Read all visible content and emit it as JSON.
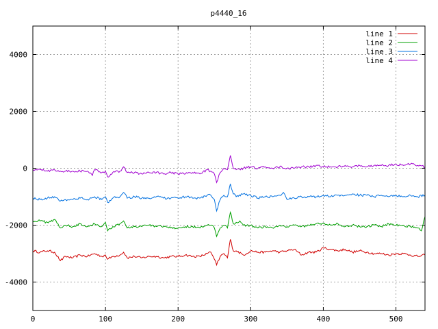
{
  "chart_data": {
    "type": "line",
    "title": "p4440_16",
    "xlabel": "",
    "ylabel": "",
    "xlim": [
      0,
      540
    ],
    "ylim": [
      -5000,
      5000
    ],
    "xticks": [
      0,
      100,
      200,
      300,
      400,
      500
    ],
    "yticks": [
      -4000,
      -2000,
      0,
      2000,
      4000
    ],
    "grid": true,
    "legend_position": "top-right",
    "series": [
      {
        "name": "line 1",
        "color": "#d00000",
        "x": [
          0,
          10,
          20,
          30,
          38,
          45,
          55,
          65,
          75,
          85,
          95,
          100,
          103,
          110,
          120,
          125,
          130,
          140,
          150,
          160,
          170,
          180,
          190,
          200,
          210,
          220,
          230,
          240,
          245,
          250,
          253,
          258,
          263,
          268,
          272,
          276,
          280,
          290,
          300,
          310,
          320,
          330,
          340,
          350,
          360,
          370,
          380,
          390,
          400,
          410,
          420,
          430,
          440,
          450,
          460,
          470,
          480,
          490,
          500,
          510,
          520,
          530,
          540
        ],
        "values": [
          -2900,
          -2950,
          -2900,
          -2950,
          -3250,
          -3100,
          -3150,
          -3050,
          -3100,
          -3000,
          -3100,
          -3050,
          -3200,
          -3100,
          -3050,
          -2950,
          -3150,
          -3100,
          -3150,
          -3100,
          -3100,
          -3150,
          -3100,
          -3100,
          -3050,
          -3100,
          -3100,
          -3000,
          -2950,
          -3200,
          -3400,
          -3100,
          -3000,
          -3150,
          -2500,
          -2900,
          -2900,
          -3050,
          -2900,
          -2950,
          -2950,
          -2900,
          -2950,
          -2900,
          -2850,
          -3050,
          -2950,
          -2950,
          -2800,
          -2850,
          -2900,
          -2850,
          -2950,
          -2900,
          -2950,
          -3000,
          -3000,
          -3050,
          -3000,
          -3000,
          -3050,
          -3100,
          -3050
        ]
      },
      {
        "name": "line 2",
        "color": "#00a000",
        "x": [
          0,
          10,
          20,
          30,
          38,
          45,
          55,
          65,
          75,
          85,
          95,
          100,
          103,
          110,
          120,
          125,
          130,
          140,
          150,
          160,
          170,
          180,
          190,
          200,
          210,
          220,
          230,
          240,
          245,
          250,
          253,
          258,
          263,
          268,
          272,
          276,
          280,
          285,
          290,
          300,
          310,
          320,
          330,
          340,
          350,
          360,
          370,
          380,
          390,
          400,
          410,
          420,
          430,
          440,
          450,
          460,
          470,
          480,
          490,
          500,
          510,
          520,
          530,
          535,
          540
        ],
        "values": [
          -1850,
          -1850,
          -1900,
          -1800,
          -2100,
          -2000,
          -2050,
          -1950,
          -2050,
          -1950,
          -2050,
          -1900,
          -2200,
          -2050,
          -1950,
          -1850,
          -2100,
          -2050,
          -2050,
          -2000,
          -2050,
          -2050,
          -2100,
          -2100,
          -2050,
          -2050,
          -2100,
          -2000,
          -2000,
          -2100,
          -2400,
          -2100,
          -2000,
          -2100,
          -1550,
          -1950,
          -1900,
          -1850,
          -2000,
          -2000,
          -2100,
          -2050,
          -2100,
          -2000,
          -2050,
          -2000,
          -2050,
          -2000,
          -1950,
          -1950,
          -2000,
          -1950,
          -2050,
          -2000,
          -2050,
          -2050,
          -2000,
          -2050,
          -1950,
          -2000,
          -2000,
          -2050,
          -2100,
          -2200,
          -1700
        ]
      },
      {
        "name": "line 3",
        "color": "#0070e0",
        "x": [
          0,
          10,
          20,
          30,
          38,
          45,
          55,
          65,
          75,
          85,
          95,
          100,
          103,
          110,
          120,
          125,
          130,
          140,
          150,
          160,
          170,
          180,
          190,
          200,
          210,
          220,
          230,
          240,
          245,
          250,
          253,
          258,
          263,
          268,
          272,
          276,
          280,
          290,
          300,
          310,
          320,
          330,
          340,
          345,
          350,
          360,
          370,
          380,
          390,
          400,
          410,
          420,
          430,
          440,
          450,
          460,
          470,
          480,
          490,
          500,
          510,
          520,
          530,
          540
        ],
        "values": [
          -1050,
          -1100,
          -1050,
          -1000,
          -1150,
          -1100,
          -1100,
          -1050,
          -1100,
          -1000,
          -1100,
          -1000,
          -1200,
          -1050,
          -1000,
          -850,
          -1050,
          -1000,
          -1050,
          -1050,
          -1000,
          -1050,
          -1050,
          -1050,
          -1000,
          -1050,
          -1050,
          -950,
          -950,
          -1100,
          -1500,
          -1100,
          -950,
          -1000,
          -550,
          -900,
          -1000,
          -900,
          -950,
          -1050,
          -1000,
          -1000,
          -950,
          -850,
          -1100,
          -1050,
          -1000,
          -1000,
          -1000,
          -950,
          -1000,
          -950,
          -950,
          -900,
          -950,
          -950,
          -1000,
          -950,
          -1000,
          -950,
          -1000,
          -950,
          -1000,
          -950
        ]
      },
      {
        "name": "line 4",
        "color": "#a000d0",
        "x": [
          0,
          10,
          20,
          30,
          38,
          45,
          55,
          65,
          75,
          82,
          85,
          95,
          100,
          103,
          110,
          120,
          125,
          130,
          140,
          150,
          160,
          170,
          180,
          190,
          200,
          210,
          220,
          230,
          240,
          245,
          250,
          253,
          258,
          263,
          268,
          272,
          276,
          280,
          290,
          300,
          310,
          320,
          330,
          340,
          350,
          360,
          370,
          380,
          390,
          400,
          410,
          420,
          430,
          440,
          450,
          460,
          470,
          480,
          490,
          500,
          510,
          520,
          530,
          540
        ],
        "values": [
          -50,
          -50,
          -100,
          -50,
          -100,
          -100,
          -100,
          -100,
          -100,
          -250,
          -50,
          -150,
          -100,
          -300,
          -150,
          -100,
          50,
          -150,
          -150,
          -200,
          -150,
          -150,
          -200,
          -150,
          -200,
          -200,
          -150,
          -200,
          -50,
          -100,
          -200,
          -500,
          -150,
          0,
          -50,
          450,
          0,
          -50,
          0,
          50,
          0,
          50,
          0,
          50,
          0,
          0,
          50,
          50,
          100,
          50,
          50,
          50,
          100,
          50,
          100,
          50,
          100,
          100,
          100,
          150,
          100,
          150,
          100,
          50
        ]
      }
    ]
  }
}
